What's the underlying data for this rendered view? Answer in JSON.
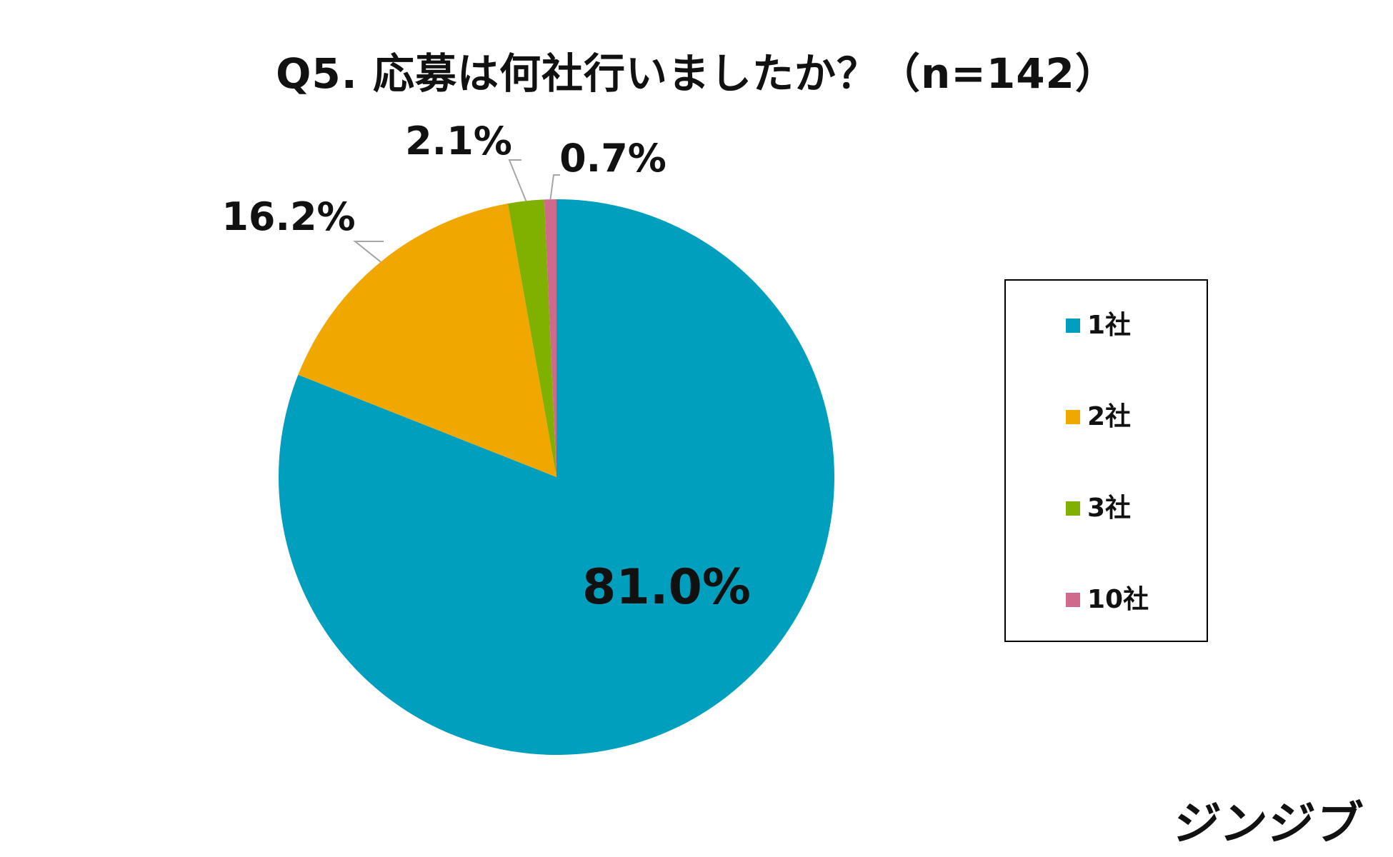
{
  "chart_data": {
    "type": "pie",
    "title": "Q5. 応募は何社行いましたか？（n=142）",
    "categories": [
      "1社",
      "2社",
      "3社",
      "10社"
    ],
    "values": [
      81.0,
      16.2,
      2.1,
      0.7
    ],
    "value_labels": [
      "81.0%",
      "16.2%",
      "2.1%",
      "0.7%"
    ],
    "colors": [
      "#009FBE",
      "#F0A800",
      "#80B000",
      "#D06A8C"
    ],
    "start_angle": "12 o'clock",
    "direction": "clockwise",
    "legend_position": "right",
    "legend": [
      "1社",
      "2社",
      "3社",
      "10社"
    ]
  },
  "brand": {
    "name": "ジンジブ"
  }
}
